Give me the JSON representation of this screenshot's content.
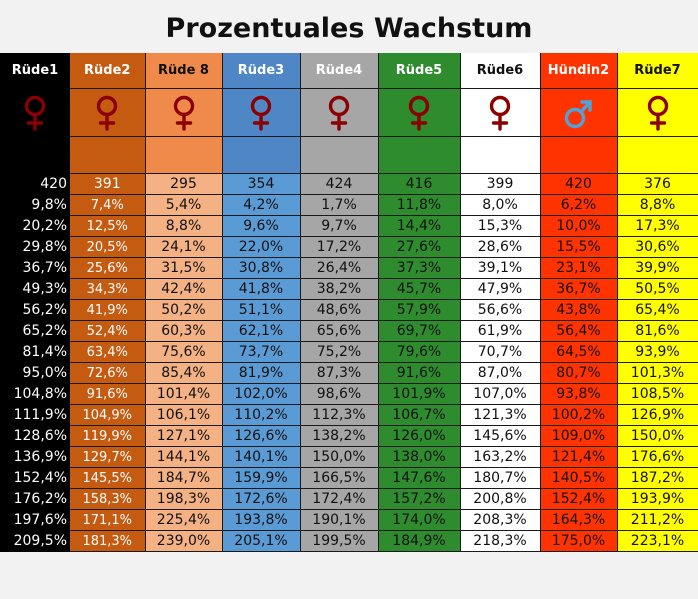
{
  "title": "Prozentuales Wachstum",
  "columns": [
    {
      "name": "Rüde1",
      "symbol": "female",
      "symbol_color": "#8b0000"
    },
    {
      "name": "Rüde2",
      "symbol": "female",
      "symbol_color": "#8b0000"
    },
    {
      "name": "Rüde 8",
      "symbol": "female",
      "symbol_color": "#8b0000"
    },
    {
      "name": "Rüde3",
      "symbol": "female",
      "symbol_color": "#8b0000"
    },
    {
      "name": "Rüde4",
      "symbol": "female",
      "symbol_color": "#8b0000"
    },
    {
      "name": "Rüde5",
      "symbol": "female",
      "symbol_color": "#8b0000"
    },
    {
      "name": "Rüde6",
      "symbol": "female",
      "symbol_color": "#8b0000"
    },
    {
      "name": "Hündin2",
      "symbol": "male",
      "symbol_color": "#4fa3d9"
    },
    {
      "name": "Rüde7",
      "symbol": "female",
      "symbol_color": "#8b0000"
    }
  ],
  "counts": [
    "420",
    "391",
    "295",
    "354",
    "424",
    "416",
    "399",
    "420",
    "376"
  ],
  "rows": [
    [
      "9,8%",
      "7,4%",
      "5,4%",
      "4,2%",
      "1,7%",
      "11,8%",
      "8,0%",
      "6,2%",
      "8,8%"
    ],
    [
      "20,2%",
      "12,5%",
      "8,8%",
      "9,6%",
      "9,7%",
      "14,4%",
      "15,3%",
      "10,0%",
      "17,3%"
    ],
    [
      "29,8%",
      "20,5%",
      "24,1%",
      "22,0%",
      "17,2%",
      "27,6%",
      "28,6%",
      "15,5%",
      "30,6%"
    ],
    [
      "36,7%",
      "25,6%",
      "31,5%",
      "30,8%",
      "26,4%",
      "37,3%",
      "39,1%",
      "23,1%",
      "39,9%"
    ],
    [
      "49,3%",
      "34,3%",
      "42,4%",
      "41,8%",
      "38,2%",
      "45,7%",
      "47,9%",
      "36,7%",
      "50,5%"
    ],
    [
      "56,2%",
      "41,9%",
      "50,2%",
      "51,1%",
      "48,6%",
      "57,9%",
      "56,6%",
      "43,8%",
      "65,4%"
    ],
    [
      "65,2%",
      "52,4%",
      "60,3%",
      "62,1%",
      "65,6%",
      "69,7%",
      "61,9%",
      "56,4%",
      "81,6%"
    ],
    [
      "81,4%",
      "63,4%",
      "75,6%",
      "73,7%",
      "75,2%",
      "79,6%",
      "70,7%",
      "64,5%",
      "93,9%"
    ],
    [
      "95,0%",
      "72,6%",
      "85,4%",
      "81,9%",
      "87,3%",
      "91,6%",
      "87,0%",
      "80,7%",
      "101,3%"
    ],
    [
      "104,8%",
      "91,6%",
      "101,4%",
      "102,0%",
      "98,6%",
      "101,9%",
      "107,0%",
      "93,8%",
      "108,5%"
    ],
    [
      "111,9%",
      "104,9%",
      "106,1%",
      "110,2%",
      "112,3%",
      "106,7%",
      "121,3%",
      "100,2%",
      "126,9%"
    ],
    [
      "128,6%",
      "119,9%",
      "127,1%",
      "126,6%",
      "138,2%",
      "126,0%",
      "145,6%",
      "109,0%",
      "150,0%"
    ],
    [
      "136,9%",
      "129,7%",
      "144,1%",
      "140,1%",
      "150,0%",
      "138,0%",
      "163,2%",
      "121,4%",
      "176,6%"
    ],
    [
      "152,4%",
      "145,5%",
      "184,7%",
      "159,9%",
      "166,5%",
      "147,6%",
      "180,7%",
      "140,5%",
      "187,2%"
    ],
    [
      "176,2%",
      "158,3%",
      "198,3%",
      "172,6%",
      "172,4%",
      "157,2%",
      "200,8%",
      "152,4%",
      "193,9%"
    ],
    [
      "197,6%",
      "171,1%",
      "225,4%",
      "193,8%",
      "190,1%",
      "174,0%",
      "208,3%",
      "164,3%",
      "211,2%"
    ],
    [
      "209,5%",
      "181,3%",
      "239,0%",
      "205,1%",
      "199,5%",
      "184,9%",
      "218,3%",
      "175,0%",
      "223,1%"
    ]
  ]
}
